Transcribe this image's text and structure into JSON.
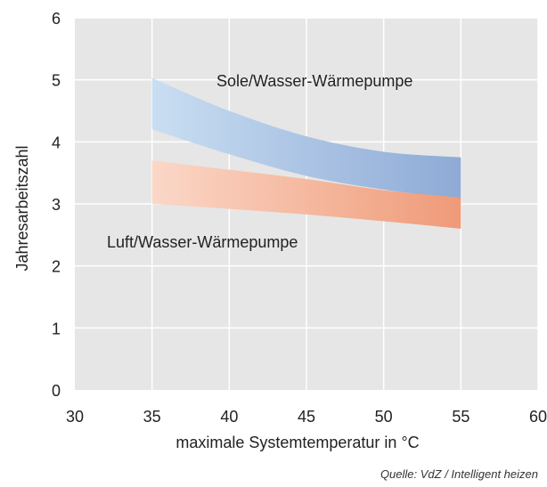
{
  "chart_data": {
    "type": "area",
    "xlabel": "maximale Systemtemperatur in °C",
    "ylabel": "Jahresarbeitszahl",
    "xlim": [
      30,
      60
    ],
    "ylim": [
      0,
      6
    ],
    "xticks": [
      30,
      35,
      40,
      45,
      50,
      55,
      60
    ],
    "yticks": [
      0,
      1,
      2,
      3,
      4,
      5,
      6
    ],
    "grid": true,
    "background": "#e6e6e6",
    "series": [
      {
        "name": "Sole/Wasser-Wärmepumpe",
        "color_start": "#c9def2",
        "color_end": "#8eaad6",
        "x": [
          35,
          40,
          45,
          50,
          55
        ],
        "upper": [
          5.03,
          4.5,
          4.09,
          3.84,
          3.75
        ],
        "lower": [
          4.2,
          3.8,
          3.45,
          3.23,
          3.08
        ]
      },
      {
        "name": "Luft/Wasser-Wärmepumpe",
        "color_start": "#fbd7c7",
        "color_end": "#ef9a78",
        "x": [
          35,
          40,
          45,
          50,
          55
        ],
        "upper": [
          3.7,
          3.55,
          3.4,
          3.22,
          3.1
        ],
        "lower": [
          3.0,
          2.92,
          2.83,
          2.72,
          2.6
        ]
      }
    ],
    "source_note": "Quelle: VdZ / Intelligent heizen"
  }
}
